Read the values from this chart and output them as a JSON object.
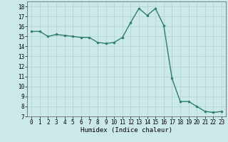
{
  "x": [
    0,
    1,
    2,
    3,
    4,
    5,
    6,
    7,
    8,
    9,
    10,
    11,
    12,
    13,
    14,
    15,
    16,
    17,
    18,
    19,
    20,
    21,
    22,
    23
  ],
  "y": [
    15.5,
    15.5,
    15.0,
    15.2,
    15.1,
    15.0,
    14.9,
    14.9,
    14.4,
    14.3,
    14.4,
    14.9,
    16.4,
    17.8,
    17.1,
    17.8,
    16.1,
    10.8,
    8.5,
    8.5,
    8.0,
    7.5,
    7.4,
    7.5
  ],
  "line_color": "#2e7d6e",
  "marker": "o",
  "markersize": 2.0,
  "linewidth": 1.0,
  "xlabel": "Humidex (Indice chaleur)",
  "xlim": [
    -0.5,
    23.5
  ],
  "ylim": [
    7,
    18.5
  ],
  "yticks": [
    7,
    8,
    9,
    10,
    11,
    12,
    13,
    14,
    15,
    16,
    17,
    18
  ],
  "xticks": [
    0,
    1,
    2,
    3,
    4,
    5,
    6,
    7,
    8,
    9,
    10,
    11,
    12,
    13,
    14,
    15,
    16,
    17,
    18,
    19,
    20,
    21,
    22,
    23
  ],
  "bg_color": "#cce9e9",
  "grid_color": "#b0d0d0",
  "tick_fontsize": 5.5,
  "xlabel_fontsize": 6.5,
  "xlabel_fontfamily": "monospace"
}
